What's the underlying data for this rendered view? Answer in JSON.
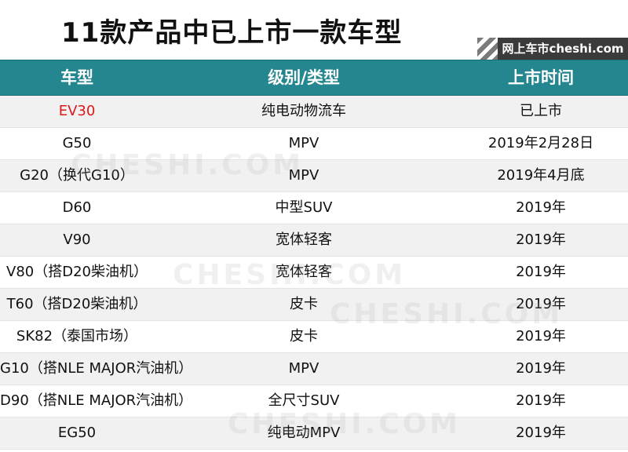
{
  "title": "11款产品中已上市一款车型",
  "brand_tag": "网上车市cheshi.com",
  "watermark": "CHESHI.COM",
  "headers": [
    "车型",
    "级别/类型",
    "上市时间"
  ],
  "rows": [
    [
      "EV30",
      "纯电动物流车",
      "已上市"
    ],
    [
      "G50",
      "MPV",
      "2019年2月28日"
    ],
    [
      "G20（换代G10）",
      "MPV",
      "2019年4月底"
    ],
    [
      "D60",
      "中型SUV",
      "2019年"
    ],
    [
      "V90",
      "宽体轻客",
      "2019年"
    ],
    [
      "V80（搭D20柴油机）",
      "宽体轻客",
      "2019年"
    ],
    [
      "T60（搭D20柴油机）",
      "皮卡",
      "2019年"
    ],
    [
      "SK82（泰国市场）",
      "皮卡",
      "2019年"
    ],
    [
      "G10（搭NLE MAJOR汽油机）",
      "MPV",
      "2019年"
    ],
    [
      "D90（搭NLE MAJOR汽油机）",
      "全尺寸SUV",
      "2019年"
    ],
    [
      "EG50",
      "纯电动MPV",
      "2019年"
    ]
  ],
  "highlight_color": "#e01818",
  "header_color": "#24878f"
}
